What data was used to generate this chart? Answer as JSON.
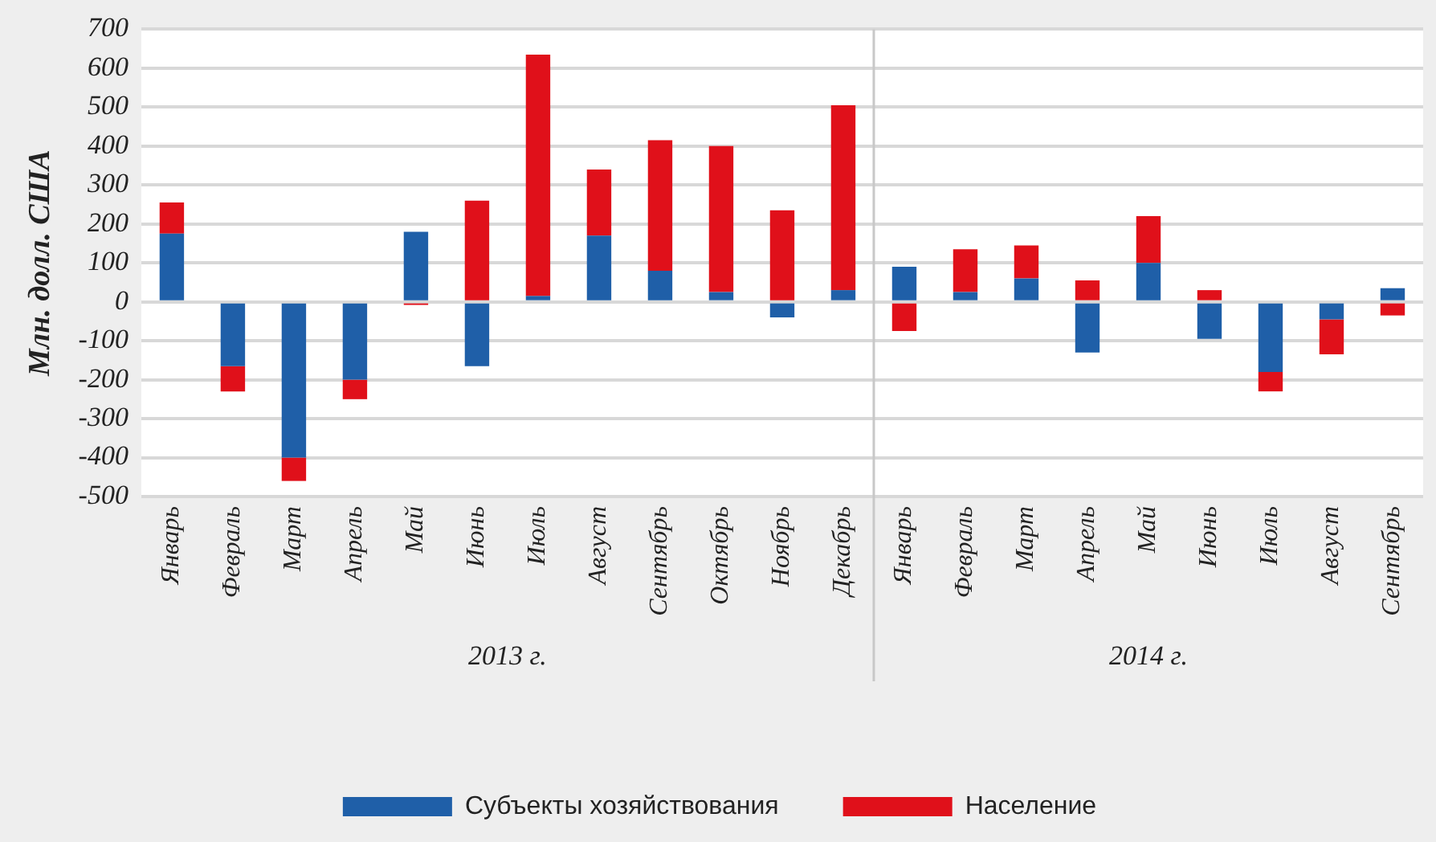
{
  "chart_data": {
    "type": "bar",
    "stacked": true,
    "ylabel": "Млн. долл. США",
    "categories": [
      "Январь",
      "Февраль",
      "Март",
      "Апрель",
      "Май",
      "Июнь",
      "Июль",
      "Август",
      "Сентябрь",
      "Октябрь",
      "Ноябрь",
      "Декабрь",
      "Январь",
      "Февраль",
      "Март",
      "Апрель",
      "Май",
      "Июнь",
      "Июль",
      "Август",
      "Сентябрь"
    ],
    "series": [
      {
        "name": "Субъекты хозяйствования",
        "color": "#1f5fa8",
        "values": [
          175,
          -165,
          -400,
          -200,
          180,
          -165,
          15,
          170,
          80,
          25,
          -40,
          30,
          90,
          25,
          60,
          -130,
          100,
          -95,
          -180,
          -45,
          35
        ]
      },
      {
        "name": "Население",
        "color": "#e0101a",
        "values": [
          80,
          -65,
          -60,
          -50,
          -8,
          260,
          620,
          170,
          335,
          375,
          235,
          475,
          -75,
          110,
          85,
          55,
          120,
          30,
          -50,
          -90,
          -35
        ]
      }
    ],
    "ylim": [
      -500,
      700
    ],
    "yticks": [
      -500,
      -400,
      -300,
      -200,
      -100,
      0,
      100,
      200,
      300,
      400,
      500,
      600,
      700
    ],
    "grid": "y",
    "legend": "bottom",
    "ref_lines": [
      {
        "axis": "x",
        "value": "Декабрь",
        "color": "#c8c8c8"
      }
    ],
    "annotations": [
      "2013 г.",
      "2014 г."
    ]
  }
}
